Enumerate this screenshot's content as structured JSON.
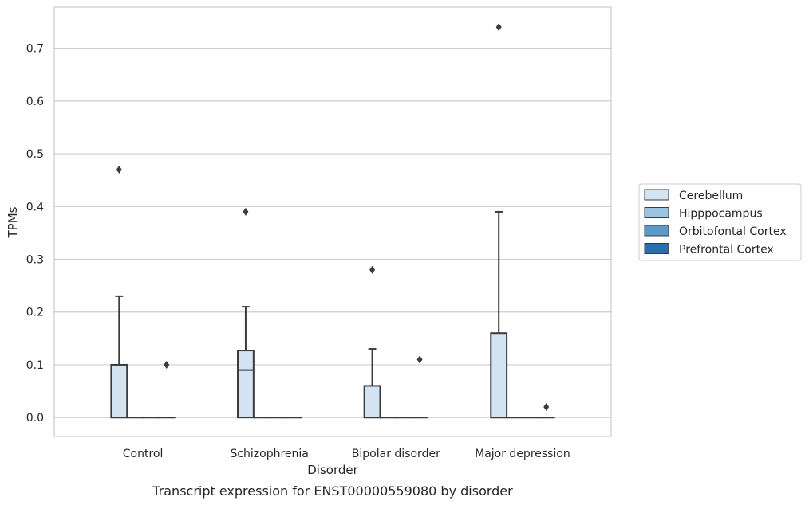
{
  "chart_data": {
    "type": "box",
    "caption": "Transcript expression for ENST00000559080 by disorder",
    "xlabel": "Disorder",
    "ylabel": "TPMs",
    "ylim": [
      -0.036,
      0.778
    ],
    "yticks": [
      0.0,
      0.1,
      0.2,
      0.3,
      0.4,
      0.5,
      0.6,
      0.7
    ],
    "ytick_labels": [
      "0.0",
      "0.1",
      "0.2",
      "0.3",
      "0.4",
      "0.5",
      "0.6",
      "0.7"
    ],
    "grid": "y",
    "legend_position": "right",
    "categories": [
      "Control",
      "Schizophrenia",
      "Bipolar disorder",
      "Major depression"
    ],
    "series": [
      {
        "name": "Cerebellum",
        "color": "#d3e3f1",
        "boxes": [
          {
            "q1": 0.0,
            "median": 0.0,
            "q3": 0.1,
            "whisker_low": 0.0,
            "whisker_high": 0.23,
            "outliers": [
              0.47
            ]
          },
          {
            "q1": 0.0,
            "median": 0.09,
            "q3": 0.127,
            "whisker_low": 0.0,
            "whisker_high": 0.21,
            "outliers": [
              0.39
            ]
          },
          {
            "q1": 0.0,
            "median": 0.0,
            "q3": 0.06,
            "whisker_low": 0.0,
            "whisker_high": 0.13,
            "outliers": [
              0.28
            ]
          },
          {
            "q1": 0.0,
            "median": 0.0,
            "q3": 0.16,
            "whisker_low": 0.0,
            "whisker_high": 0.39,
            "outliers": [
              0.74
            ]
          }
        ]
      },
      {
        "name": "Hipppocampus",
        "color": "#9ac4e0",
        "boxes": [
          {
            "q1": 0.0,
            "median": 0.0,
            "q3": 0.0,
            "whisker_low": 0.0,
            "whisker_high": 0.0,
            "outliers": []
          },
          {
            "q1": 0.0,
            "median": 0.0,
            "q3": 0.0,
            "whisker_low": 0.0,
            "whisker_high": 0.0,
            "outliers": []
          },
          {
            "q1": 0.0,
            "median": 0.0,
            "q3": 0.0,
            "whisker_low": 0.0,
            "whisker_high": 0.0,
            "outliers": []
          },
          {
            "q1": 0.0,
            "median": 0.0,
            "q3": 0.0,
            "whisker_low": 0.0,
            "whisker_high": 0.0,
            "outliers": []
          }
        ]
      },
      {
        "name": "Orbitofontal Cortex",
        "color": "#5b9bc9",
        "boxes": [
          {
            "q1": 0.0,
            "median": 0.0,
            "q3": 0.0,
            "whisker_low": 0.0,
            "whisker_high": 0.0,
            "outliers": []
          },
          {
            "q1": 0.0,
            "median": 0.0,
            "q3": 0.0,
            "whisker_low": 0.0,
            "whisker_high": 0.0,
            "outliers": []
          },
          {
            "q1": 0.0,
            "median": 0.0,
            "q3": 0.0,
            "whisker_low": 0.0,
            "whisker_high": 0.0,
            "outliers": []
          },
          {
            "q1": 0.0,
            "median": 0.0,
            "q3": 0.0,
            "whisker_low": 0.0,
            "whisker_high": 0.0,
            "outliers": []
          }
        ]
      },
      {
        "name": "Prefrontal Cortex",
        "color": "#2c6ea8",
        "boxes": [
          {
            "q1": 0.0,
            "median": 0.0,
            "q3": 0.0,
            "whisker_low": 0.0,
            "whisker_high": 0.0,
            "outliers": [
              0.1
            ]
          },
          {
            "q1": 0.0,
            "median": 0.0,
            "q3": 0.0,
            "whisker_low": 0.0,
            "whisker_high": 0.0,
            "outliers": []
          },
          {
            "q1": 0.0,
            "median": 0.0,
            "q3": 0.0,
            "whisker_low": 0.0,
            "whisker_high": 0.0,
            "outliers": [
              0.11
            ]
          },
          {
            "q1": 0.0,
            "median": 0.0,
            "q3": 0.0,
            "whisker_low": 0.0,
            "whisker_high": 0.0,
            "outliers": [
              0.02
            ]
          }
        ]
      }
    ]
  }
}
